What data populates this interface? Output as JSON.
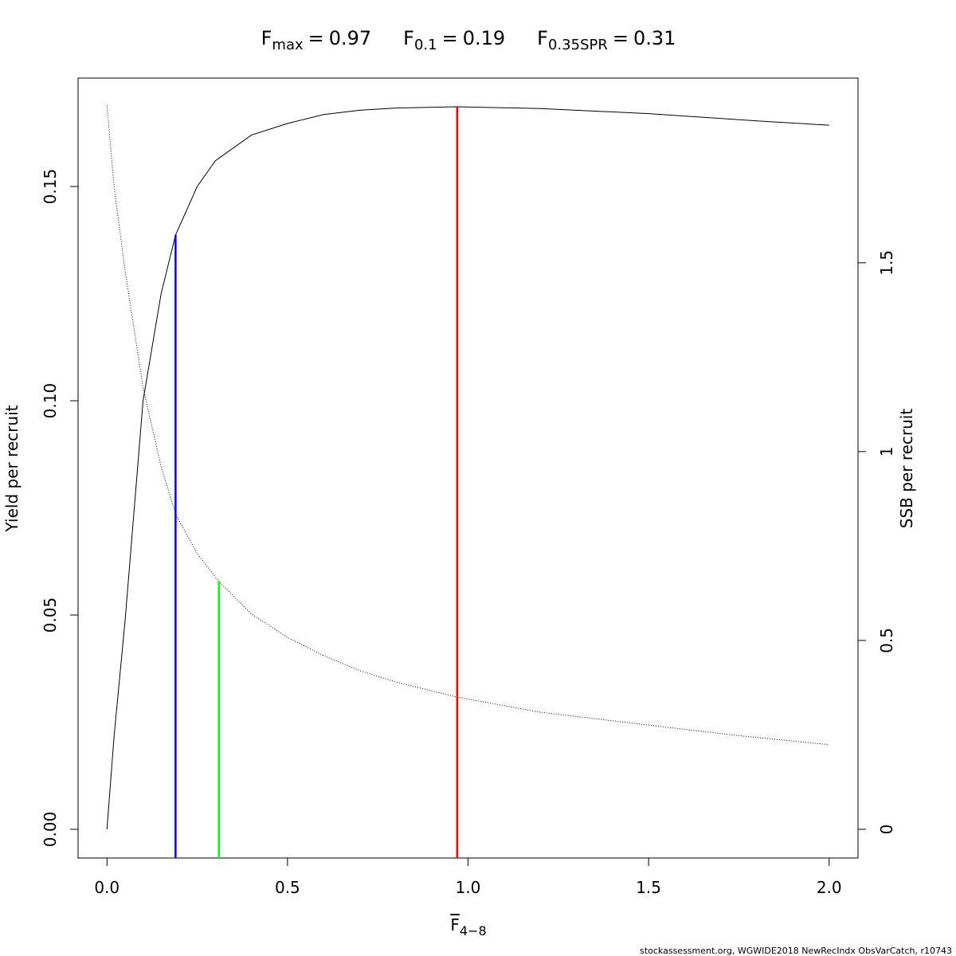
{
  "chart_data": {
    "type": "line",
    "title_parts": [
      {
        "label": "F",
        "sub": "max",
        "value": 0.97,
        "color": "#ff0000",
        "curve": 0
      },
      {
        "label": "F",
        "sub": "0.1",
        "value": 0.19,
        "color": "#0000ff",
        "curve": 0
      },
      {
        "label": "F",
        "sub": "0.35SPR",
        "value": 0.31,
        "color": "#00ff00",
        "curve": 1
      }
    ],
    "title_separator": "=",
    "x_label": {
      "label": "F",
      "sub": "4−8"
    },
    "y_label": "Yield per recruit",
    "y2_label": "SSB per recruit",
    "footer": "stockassessment.org, WGWIDE2018  NewRecIndx  ObsVarCatch, r10743",
    "series": [
      {
        "name": "Yield per recruit",
        "color": "#000000",
        "line_style": "solid",
        "x": [
          0,
          0.02,
          0.05,
          0.1,
          0.15,
          0.19,
          0.25,
          0.3,
          0.4,
          0.5,
          0.6,
          0.7,
          0.8,
          0.97,
          1.2,
          1.5,
          1.8,
          2.0
        ],
        "values": [
          0,
          0.022,
          0.0485,
          0.1,
          0.125,
          0.1387,
          0.15,
          0.156,
          0.162,
          0.1647,
          0.1668,
          0.1678,
          0.1683,
          0.1686,
          0.1682,
          0.167,
          0.1653,
          0.1643
        ]
      },
      {
        "name": "SSB per recruit",
        "color": "#000000",
        "line_style": "dotted",
        "axis": "y2",
        "x": [
          0,
          0.02,
          0.05,
          0.1,
          0.15,
          0.19,
          0.25,
          0.31,
          0.4,
          0.5,
          0.6,
          0.7,
          0.8,
          0.97,
          1.2,
          1.5,
          1.75,
          2.0
        ],
        "values": [
          1.916,
          1.7,
          1.48,
          1.17,
          0.96,
          0.835,
          0.73,
          0.656,
          0.57,
          0.508,
          0.46,
          0.42,
          0.39,
          0.35,
          0.31,
          0.276,
          0.248,
          0.224
        ]
      }
    ],
    "xlim": [
      -0.08,
      2.08
    ],
    "xticks": [
      {
        "value": 0,
        "label": "0.0"
      },
      0.5,
      {
        "value": 1,
        "label": "1.0"
      },
      1.5,
      {
        "value": 2,
        "label": "2.0"
      }
    ],
    "ylim": [
      -0.0067,
      0.1753
    ],
    "yticks": [
      {
        "value": 0,
        "label": "0.00"
      },
      {
        "value": 0.05,
        "label": "0.05"
      },
      {
        "value": 0.1,
        "label": "0.10"
      },
      {
        "value": 0.15,
        "label": "0.15"
      }
    ],
    "y2lim": [
      -0.076,
      1.989
    ],
    "y2ticks": [
      0,
      0.5,
      1,
      1.5
    ]
  }
}
